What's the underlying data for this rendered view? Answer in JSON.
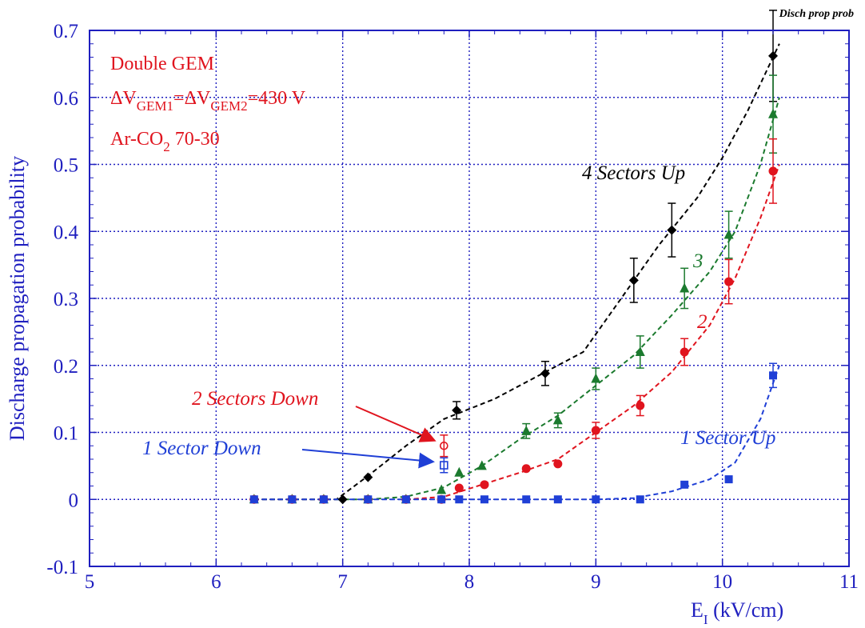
{
  "page": {
    "corner_tag": "Disch prop prob",
    "corner_color": "#9b30c8"
  },
  "chart_data": {
    "type": "scatter",
    "title": "",
    "xlabel": "E",
    "xlabel_sub": "I",
    "xlabel_unit": " (kV/cm)",
    "ylabel": "Discharge propagation probability",
    "xlim": [
      5,
      11
    ],
    "ylim": [
      -0.1,
      0.7
    ],
    "x_ticks": [
      "5",
      "6",
      "7",
      "8",
      "9",
      "10",
      "11"
    ],
    "y_ticks": [
      "-0.1",
      "0",
      "0.1",
      "0.2",
      "0.3",
      "0.4",
      "0.5",
      "0.6",
      "0.7"
    ],
    "grid": true,
    "annotation": {
      "line1": "Double GEM",
      "line2": {
        "d1": "ΔV",
        "s1": "GEM1",
        "d2": "=ΔV",
        "s2": "GEM2",
        "d3": "=430 V"
      },
      "line3": {
        "a": "Ar-CO",
        "s": "2",
        "b": " 70-30"
      },
      "color": "#e0141e"
    },
    "series": [
      {
        "label": "4 Sectors Up",
        "color": "#000000",
        "marker": "diamond",
        "points": [
          {
            "x": 7.0,
            "y": 0.0,
            "err": 0
          },
          {
            "x": 7.2,
            "y": 0.033,
            "err": 0
          },
          {
            "x": 7.9,
            "y": 0.133,
            "err": 0.013
          },
          {
            "x": 8.6,
            "y": 0.188,
            "err": 0.018
          },
          {
            "x": 9.3,
            "y": 0.327,
            "err": 0.033
          },
          {
            "x": 9.6,
            "y": 0.402,
            "err": 0.04
          },
          {
            "x": 10.4,
            "y": 0.662,
            "err": 0.068
          }
        ],
        "fit": [
          [
            6.3,
            0
          ],
          [
            6.95,
            0
          ],
          [
            7.2,
            0.035
          ],
          [
            7.5,
            0.08
          ],
          [
            7.8,
            0.12
          ],
          [
            8.2,
            0.15
          ],
          [
            8.6,
            0.19
          ],
          [
            8.9,
            0.22
          ],
          [
            9.2,
            0.3
          ],
          [
            9.5,
            0.38
          ],
          [
            9.8,
            0.45
          ],
          [
            10.0,
            0.51
          ],
          [
            10.2,
            0.58
          ],
          [
            10.45,
            0.68
          ]
        ]
      },
      {
        "label": "3",
        "color": "#1b7a2e",
        "marker": "triangle",
        "points": [
          {
            "x": 6.3,
            "y": 0.0,
            "err": 0
          },
          {
            "x": 6.6,
            "y": 0.0,
            "err": 0
          },
          {
            "x": 6.85,
            "y": 0.0,
            "err": 0
          },
          {
            "x": 7.2,
            "y": 0.0,
            "err": 0
          },
          {
            "x": 7.5,
            "y": 0.0,
            "err": 0
          },
          {
            "x": 7.78,
            "y": 0.014,
            "err": 0
          },
          {
            "x": 7.92,
            "y": 0.04,
            "err": 0
          },
          {
            "x": 8.1,
            "y": 0.05,
            "err": 0
          },
          {
            "x": 8.45,
            "y": 0.102,
            "err": 0.011
          },
          {
            "x": 8.7,
            "y": 0.118,
            "err": 0.011
          },
          {
            "x": 9.0,
            "y": 0.18,
            "err": 0.016
          },
          {
            "x": 9.35,
            "y": 0.22,
            "err": 0.024
          },
          {
            "x": 9.7,
            "y": 0.315,
            "err": 0.03
          },
          {
            "x": 10.05,
            "y": 0.395,
            "err": 0.035
          },
          {
            "x": 10.4,
            "y": 0.575,
            "err": 0.058
          }
        ],
        "fit": [
          [
            6.95,
            0
          ],
          [
            7.2,
            0
          ],
          [
            7.5,
            0.004
          ],
          [
            7.8,
            0.018
          ],
          [
            8.1,
            0.05
          ],
          [
            8.4,
            0.09
          ],
          [
            8.7,
            0.125
          ],
          [
            9.0,
            0.17
          ],
          [
            9.3,
            0.215
          ],
          [
            9.6,
            0.275
          ],
          [
            9.9,
            0.34
          ],
          [
            10.1,
            0.4
          ],
          [
            10.3,
            0.5
          ],
          [
            10.45,
            0.6
          ]
        ]
      },
      {
        "label": "2",
        "color": "#e0141e",
        "marker": "circle",
        "points": [
          {
            "x": 6.3,
            "y": 0.0,
            "err": 0
          },
          {
            "x": 6.6,
            "y": 0.0,
            "err": 0
          },
          {
            "x": 6.85,
            "y": 0.0,
            "err": 0
          },
          {
            "x": 7.2,
            "y": 0.0,
            "err": 0
          },
          {
            "x": 7.5,
            "y": 0.0,
            "err": 0
          },
          {
            "x": 7.78,
            "y": 0.0,
            "err": 0
          },
          {
            "x": 7.92,
            "y": 0.017,
            "err": 0
          },
          {
            "x": 8.12,
            "y": 0.022,
            "err": 0
          },
          {
            "x": 8.45,
            "y": 0.046,
            "err": 0
          },
          {
            "x": 8.7,
            "y": 0.053,
            "err": 0
          },
          {
            "x": 9.0,
            "y": 0.103,
            "err": 0.012
          },
          {
            "x": 9.35,
            "y": 0.14,
            "err": 0.015
          },
          {
            "x": 9.7,
            "y": 0.22,
            "err": 0.02
          },
          {
            "x": 10.05,
            "y": 0.325,
            "err": 0.033
          },
          {
            "x": 10.4,
            "y": 0.49,
            "err": 0.048
          }
        ],
        "fit": [
          [
            7.5,
            0
          ],
          [
            7.8,
            0.004
          ],
          [
            8.1,
            0.022
          ],
          [
            8.4,
            0.04
          ],
          [
            8.7,
            0.06
          ],
          [
            9.0,
            0.1
          ],
          [
            9.3,
            0.14
          ],
          [
            9.6,
            0.19
          ],
          [
            9.9,
            0.26
          ],
          [
            10.1,
            0.33
          ],
          [
            10.3,
            0.42
          ],
          [
            10.45,
            0.5
          ]
        ]
      },
      {
        "label": "1 Sector Up",
        "color": "#1f3fd6",
        "marker": "square",
        "points": [
          {
            "x": 6.3,
            "y": 0.0,
            "err": 0
          },
          {
            "x": 6.6,
            "y": 0.0,
            "err": 0
          },
          {
            "x": 6.85,
            "y": 0.0,
            "err": 0
          },
          {
            "x": 7.2,
            "y": 0.0,
            "err": 0
          },
          {
            "x": 7.5,
            "y": 0.0,
            "err": 0
          },
          {
            "x": 7.78,
            "y": 0.0,
            "err": 0
          },
          {
            "x": 7.92,
            "y": 0.0,
            "err": 0
          },
          {
            "x": 8.12,
            "y": 0.0,
            "err": 0
          },
          {
            "x": 8.45,
            "y": 0.0,
            "err": 0
          },
          {
            "x": 8.7,
            "y": 0.0,
            "err": 0
          },
          {
            "x": 9.0,
            "y": 0.0,
            "err": 0
          },
          {
            "x": 9.35,
            "y": 0.0,
            "err": 0
          },
          {
            "x": 9.7,
            "y": 0.022,
            "err": 0
          },
          {
            "x": 10.05,
            "y": 0.03,
            "err": 0
          },
          {
            "x": 10.4,
            "y": 0.185,
            "err": 0.018
          }
        ],
        "fit": [
          [
            6.3,
            0
          ],
          [
            9.0,
            0
          ],
          [
            9.3,
            0.002
          ],
          [
            9.6,
            0.012
          ],
          [
            9.9,
            0.03
          ],
          [
            10.1,
            0.055
          ],
          [
            10.3,
            0.12
          ],
          [
            10.45,
            0.2
          ]
        ]
      }
    ],
    "down_points": [
      {
        "label": "2 Sectors Down",
        "x": 7.8,
        "y": 0.08,
        "err": 0.016,
        "color": "#e0141e",
        "marker": "open-circle"
      },
      {
        "label": "1 Sector Down",
        "x": 7.8,
        "y": 0.051,
        "err": 0.011,
        "color": "#1f3fd6",
        "marker": "open-square"
      }
    ]
  }
}
